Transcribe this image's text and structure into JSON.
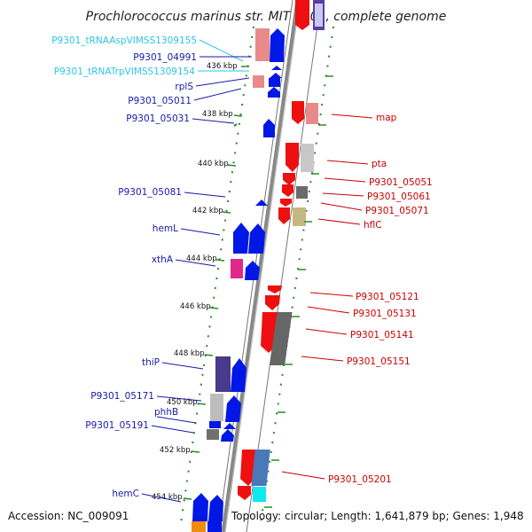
{
  "title": "Prochlorococcus marinus str. MIT 9301, complete genome",
  "footer": {
    "accession": "Accession: NC_009091",
    "summary": "Topology: circular; Length: 1,641,879 bp; Genes: 1,948"
  },
  "colors": {
    "forward_cds": "#0018e6",
    "reverse_cds": "#ee1010",
    "rna_label": "#2ec4e8",
    "forward_label": "#1a1aaa",
    "reverse_label": "#cc0000",
    "backbone": "#888888",
    "tick": "#2a8a2a"
  },
  "kbp_ticks": [
    "436 kbp",
    "438 kbp",
    "440 kbp",
    "442 kbp",
    "444 kbp",
    "446 kbp",
    "448 kbp",
    "450 kbp",
    "452 kbp",
    "454 kbp"
  ],
  "left_labels": [
    {
      "text": "P9301_tRNAAspVIMSS1309155",
      "kind": "rna"
    },
    {
      "text": "P9301_04991",
      "kind": "forward"
    },
    {
      "text": "P9301_tRNATrpVIMSS1309154",
      "kind": "rna"
    },
    {
      "text": "rplS",
      "kind": "forward"
    },
    {
      "text": "P9301_05011",
      "kind": "forward"
    },
    {
      "text": "P9301_05031",
      "kind": "forward"
    },
    {
      "text": "P9301_05081",
      "kind": "forward"
    },
    {
      "text": "hemL",
      "kind": "forward"
    },
    {
      "text": "xthA",
      "kind": "forward"
    },
    {
      "text": "thiP",
      "kind": "forward"
    },
    {
      "text": "P9301_05171",
      "kind": "forward"
    },
    {
      "text": "phhB",
      "kind": "forward"
    },
    {
      "text": "P9301_05191",
      "kind": "forward"
    },
    {
      "text": "hemC",
      "kind": "forward"
    }
  ],
  "right_labels": [
    {
      "text": "map"
    },
    {
      "text": "pta"
    },
    {
      "text": "P9301_05051"
    },
    {
      "text": "P9301_05061"
    },
    {
      "text": "P9301_05071"
    },
    {
      "text": "hflC"
    },
    {
      "text": "P9301_05121"
    },
    {
      "text": "P9301_05131"
    },
    {
      "text": "P9301_05141"
    },
    {
      "text": "P9301_05151"
    },
    {
      "text": "P9301_05201"
    }
  ]
}
